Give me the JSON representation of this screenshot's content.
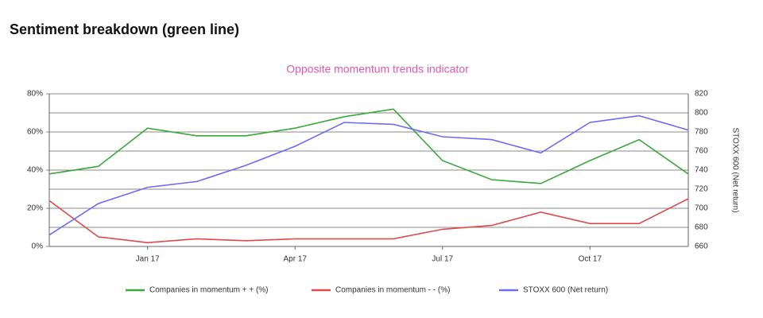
{
  "heading": "Sentiment breakdown (green line)",
  "chart_data": {
    "type": "line",
    "title": "Opposite momentum trends indicator",
    "y2label": "STOXX 600 (Net return)",
    "x": [
      "2016-11",
      "2016-12",
      "2017-01",
      "2017-02",
      "2017-03",
      "2017-04",
      "2017-05",
      "2017-06",
      "2017-07",
      "2017-08",
      "2017-09",
      "2017-10",
      "2017-11",
      "2017-12"
    ],
    "xlim": [
      "2016-11",
      "2017-12"
    ],
    "xticks": [
      {
        "value": "2017-01",
        "label": "Jan 17"
      },
      {
        "value": "2017-04",
        "label": "Apr 17"
      },
      {
        "value": "2017-07",
        "label": "Jul 17"
      },
      {
        "value": "2017-10",
        "label": "Oct 17"
      }
    ],
    "ylim": [
      0,
      80
    ],
    "yticks": [
      {
        "value": 0,
        "label": "0%"
      },
      {
        "value": 20,
        "label": "20%"
      },
      {
        "value": 40,
        "label": "40%"
      },
      {
        "value": 60,
        "label": "60%"
      },
      {
        "value": 80,
        "label": "80%"
      }
    ],
    "y2lim": [
      660,
      820
    ],
    "y2ticks": [
      660,
      680,
      700,
      720,
      740,
      760,
      780,
      800,
      820
    ],
    "grid": true,
    "legend": "bottom",
    "series": [
      {
        "name": "Companies in momentum + + (%)",
        "color": "#3aa83a",
        "values": [
          38,
          42,
          62,
          58,
          58,
          62,
          68,
          72,
          45,
          35,
          33,
          45,
          56,
          38
        ]
      },
      {
        "name": "Companies in momentum - - (%)",
        "color": "#e04a4a",
        "values": [
          24,
          5,
          2,
          4,
          3,
          4,
          4,
          4,
          9,
          11,
          18,
          12,
          12,
          25
        ]
      },
      {
        "name": "STOXX 600 (Net return)",
        "color": "#6b6bf5",
        "axis": "y2",
        "values": [
          672,
          705,
          722,
          728,
          745,
          765,
          790,
          788,
          775,
          772,
          758,
          790,
          797,
          782
        ]
      }
    ]
  }
}
